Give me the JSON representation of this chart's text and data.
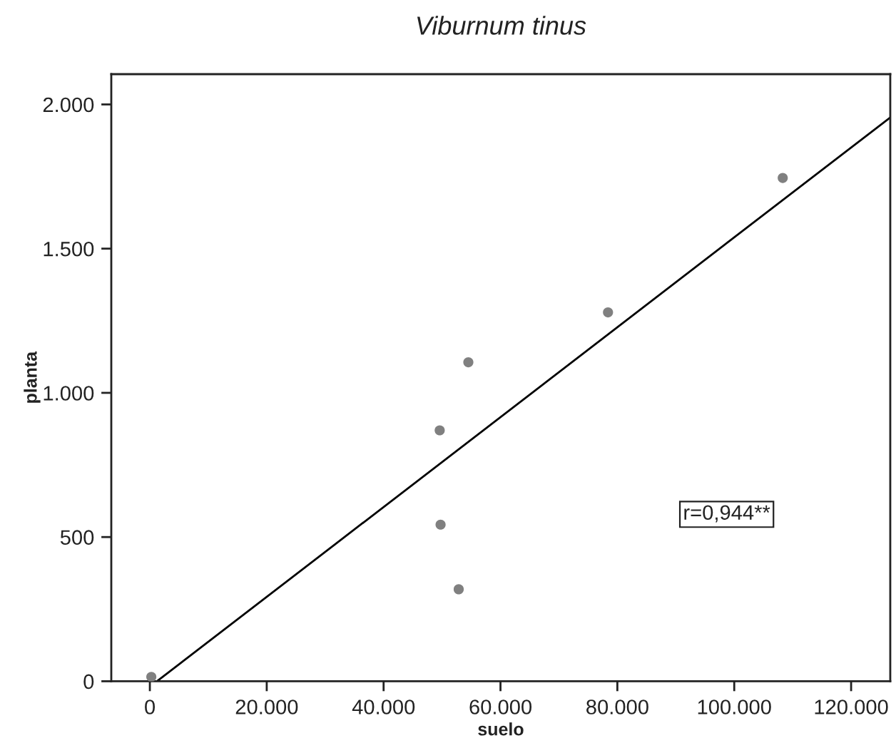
{
  "chart_data": {
    "type": "scatter",
    "title": "Viburnum tinus",
    "xlabel": "suelo",
    "ylabel": "planta",
    "xlim": [
      -6600,
      126700
    ],
    "ylim": [
      0,
      2105
    ],
    "xticks": [
      0,
      {
        "value": 20000,
        "label": "20.000"
      },
      {
        "value": 40000,
        "label": "40.000"
      },
      {
        "value": 60000,
        "label": "60.000"
      },
      {
        "value": 80000,
        "label": "80.000"
      },
      {
        "value": 100000,
        "label": "100.000"
      },
      {
        "value": 120000,
        "label": "120.000"
      }
    ],
    "yticks": [
      0,
      500,
      {
        "value": 1000,
        "label": "1.000"
      },
      {
        "value": 1500,
        "label": "1.500"
      },
      {
        "value": 2000,
        "label": "2.000"
      }
    ],
    "series": [
      {
        "color": "#808080",
        "marker": "circle",
        "x": [
          250,
          49600,
          49750,
          54500,
          52850,
          78400,
          108300
        ],
        "values": [
          15,
          870,
          543,
          1106,
          319,
          1279,
          1745
        ]
      },
      {
        "type": "line",
        "color": "#000000",
        "marker": "none",
        "line_style": "solid",
        "x": [
          1220,
          126700
        ],
        "values": [
          0,
          1955
        ]
      }
    ],
    "annotations": [
      "r=0,944**"
    ]
  }
}
